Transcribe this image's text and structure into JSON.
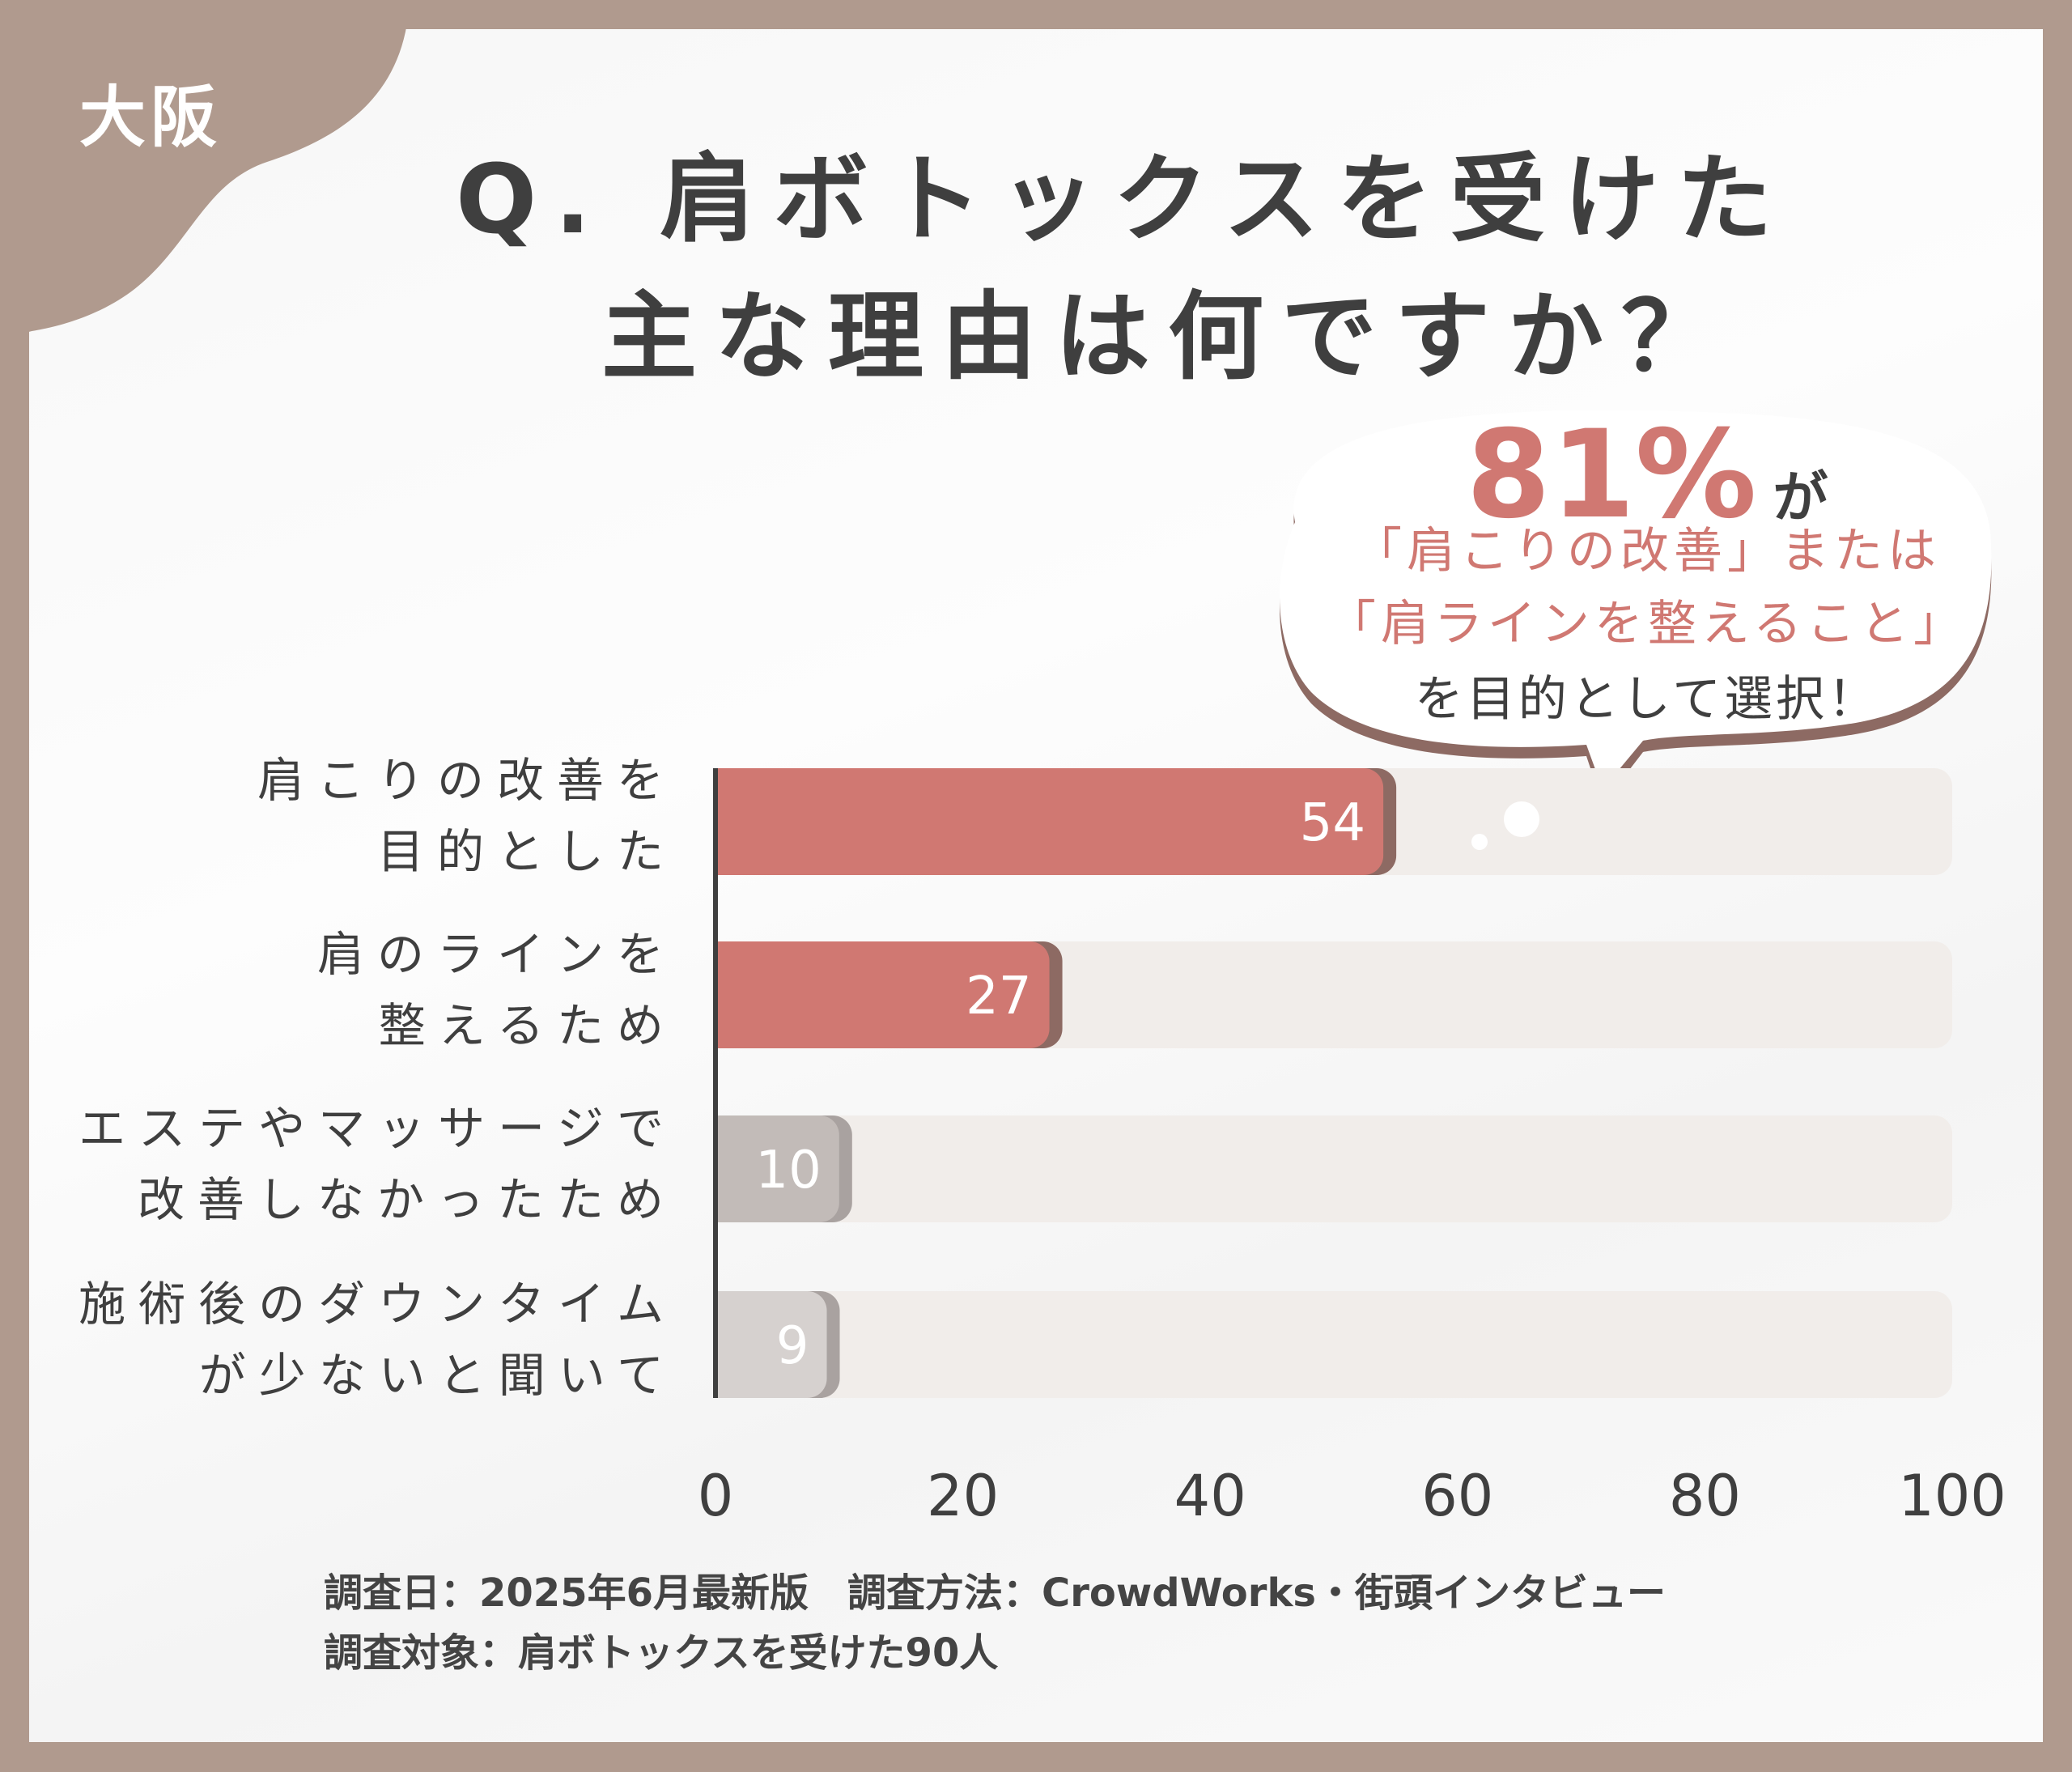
{
  "region_label": "大阪",
  "title": {
    "line1": "Q. 肩ボトックスを受けた",
    "line2": "主な理由は何ですか？"
  },
  "callout": {
    "percent": "81%",
    "particle": "が",
    "line1": "「肩こりの改善」または",
    "line2": "「肩ラインを整えること」",
    "line3": "を目的として選択！"
  },
  "colors": {
    "frame": "#b09a8e",
    "highlight": "#d07872",
    "bar_shadow": "#8d6a63",
    "bar_grey": "#c2bbb8",
    "bar_grey_light": "#d6d1cf",
    "track": "#f1edea",
    "text": "#3f3f3f"
  },
  "chart_data": {
    "type": "bar",
    "orientation": "horizontal",
    "categories": [
      [
        "肩こりの改善を",
        "目的とした"
      ],
      [
        "肩のラインを",
        "整えるため"
      ],
      [
        "エステやマッサージで",
        "改善しなかったため"
      ],
      [
        "施術後のダウンタイム",
        "が少ないと聞いて"
      ]
    ],
    "values": [
      54,
      27,
      10,
      9
    ],
    "value_labels": [
      "54",
      "27",
      "10",
      "9"
    ],
    "highlighted": [
      true,
      true,
      false,
      false
    ],
    "xlim": [
      0,
      100
    ],
    "xticks": [
      "0",
      "20",
      "40",
      "60",
      "80",
      "100"
    ],
    "grid": false
  },
  "footer": {
    "line1": "調査日：2025年6月最新版　調査方法：CrowdWorks・街頭インタビュー",
    "line2": "調査対象：肩ボトックスを受けた90人"
  }
}
